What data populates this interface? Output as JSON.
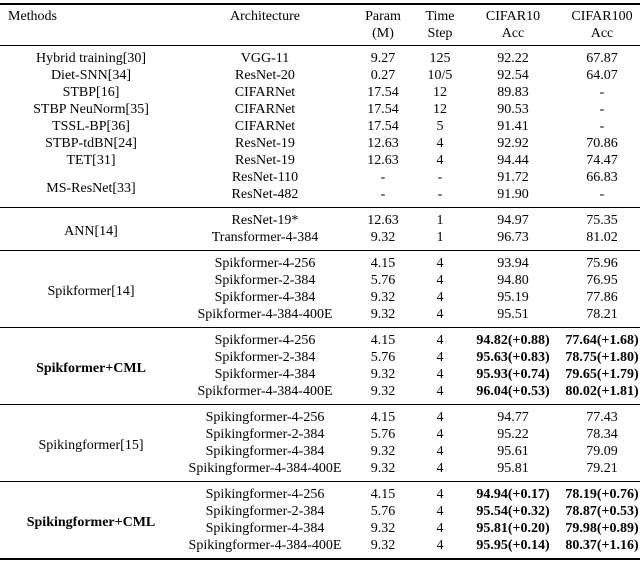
{
  "table": {
    "columns": [
      {
        "line1": "Methods",
        "line2": ""
      },
      {
        "line1": "Architecture",
        "line2": ""
      },
      {
        "line1": "Param",
        "line2": "(M)"
      },
      {
        "line1": "Time",
        "line2": "Step"
      },
      {
        "line1": "CIFAR10",
        "line2": "Acc"
      },
      {
        "line1": "CIFAR100",
        "line2": "Acc"
      }
    ],
    "sections": [
      {
        "bold": false,
        "groups": [
          {
            "method": "Hybrid training[30]",
            "rows": [
              {
                "architecture": "VGG-11",
                "param_m": "9.27",
                "time_step": "125",
                "cifar10_acc": "92.22",
                "cifar100_acc": "67.87"
              }
            ]
          },
          {
            "method": "Diet-SNN[34]",
            "rows": [
              {
                "architecture": "ResNet-20",
                "param_m": "0.27",
                "time_step": "10/5",
                "cifar10_acc": "92.54",
                "cifar100_acc": "64.07"
              }
            ]
          },
          {
            "method": "STBP[16]",
            "rows": [
              {
                "architecture": "CIFARNet",
                "param_m": "17.54",
                "time_step": "12",
                "cifar10_acc": "89.83",
                "cifar100_acc": "-"
              }
            ]
          },
          {
            "method": "STBP NeuNorm[35]",
            "rows": [
              {
                "architecture": "CIFARNet",
                "param_m": "17.54",
                "time_step": "12",
                "cifar10_acc": "90.53",
                "cifar100_acc": "-"
              }
            ]
          },
          {
            "method": "TSSL-BP[36]",
            "rows": [
              {
                "architecture": "CIFARNet",
                "param_m": "17.54",
                "time_step": "5",
                "cifar10_acc": "91.41",
                "cifar100_acc": "-"
              }
            ]
          },
          {
            "method": "STBP-tdBN[24]",
            "rows": [
              {
                "architecture": "ResNet-19",
                "param_m": "12.63",
                "time_step": "4",
                "cifar10_acc": "92.92",
                "cifar100_acc": "70.86"
              }
            ]
          },
          {
            "method": "TET[31]",
            "rows": [
              {
                "architecture": "ResNet-19",
                "param_m": "12.63",
                "time_step": "4",
                "cifar10_acc": "94.44",
                "cifar100_acc": "74.47"
              }
            ]
          },
          {
            "method": "MS-ResNet[33]",
            "rows": [
              {
                "architecture": "ResNet-110",
                "param_m": "-",
                "time_step": "-",
                "cifar10_acc": "91.72",
                "cifar100_acc": "66.83"
              },
              {
                "architecture": "ResNet-482",
                "param_m": "-",
                "time_step": "-",
                "cifar10_acc": "91.90",
                "cifar100_acc": "-"
              }
            ]
          }
        ]
      },
      {
        "bold": false,
        "groups": [
          {
            "method": "ANN[14]",
            "rows": [
              {
                "architecture": "ResNet-19*",
                "param_m": "12.63",
                "time_step": "1",
                "cifar10_acc": "94.97",
                "cifar100_acc": "75.35"
              },
              {
                "architecture": "Transformer-4-384",
                "param_m": "9.32",
                "time_step": "1",
                "cifar10_acc": "96.73",
                "cifar100_acc": "81.02"
              }
            ]
          }
        ]
      },
      {
        "bold": false,
        "groups": [
          {
            "method": "Spikformer[14]",
            "rows": [
              {
                "architecture": "Spikformer-4-256",
                "param_m": "4.15",
                "time_step": "4",
                "cifar10_acc": "93.94",
                "cifar100_acc": "75.96"
              },
              {
                "architecture": "Spikformer-2-384",
                "param_m": "5.76",
                "time_step": "4",
                "cifar10_acc": "94.80",
                "cifar100_acc": "76.95"
              },
              {
                "architecture": "Spikformer-4-384",
                "param_m": "9.32",
                "time_step": "4",
                "cifar10_acc": "95.19",
                "cifar100_acc": "77.86"
              },
              {
                "architecture": "Spikformer-4-384-400E",
                "param_m": "9.32",
                "time_step": "4",
                "cifar10_acc": "95.51",
                "cifar100_acc": "78.21"
              }
            ]
          }
        ]
      },
      {
        "bold": true,
        "groups": [
          {
            "method": "Spikformer+CML",
            "rows": [
              {
                "architecture": "Spikformer-4-256",
                "param_m": "4.15",
                "time_step": "4",
                "cifar10_acc": "94.82(+0.88)",
                "cifar100_acc": "77.64(+1.68)"
              },
              {
                "architecture": "Spikformer-2-384",
                "param_m": "5.76",
                "time_step": "4",
                "cifar10_acc": "95.63(+0.83)",
                "cifar100_acc": "78.75(+1.80)"
              },
              {
                "architecture": "Spikformer-4-384",
                "param_m": "9.32",
                "time_step": "4",
                "cifar10_acc": "95.93(+0.74)",
                "cifar100_acc": "79.65(+1.79)"
              },
              {
                "architecture": "Spikformer-4-384-400E",
                "param_m": "9.32",
                "time_step": "4",
                "cifar10_acc": "96.04(+0.53)",
                "cifar100_acc": "80.02(+1.81)"
              }
            ]
          }
        ]
      },
      {
        "bold": false,
        "groups": [
          {
            "method": "Spikingformer[15]",
            "rows": [
              {
                "architecture": "Spikingformer-4-256",
                "param_m": "4.15",
                "time_step": "4",
                "cifar10_acc": "94.77",
                "cifar100_acc": "77.43"
              },
              {
                "architecture": "Spikingformer-2-384",
                "param_m": "5.76",
                "time_step": "4",
                "cifar10_acc": "95.22",
                "cifar100_acc": "78.34"
              },
              {
                "architecture": "Spikingformer-4-384",
                "param_m": "9.32",
                "time_step": "4",
                "cifar10_acc": "95.61",
                "cifar100_acc": "79.09"
              },
              {
                "architecture": "Spikingformer-4-384-400E",
                "param_m": "9.32",
                "time_step": "4",
                "cifar10_acc": "95.81",
                "cifar100_acc": "79.21"
              }
            ]
          }
        ]
      },
      {
        "bold": true,
        "groups": [
          {
            "method": "Spikingformer+CML",
            "rows": [
              {
                "architecture": "Spikingformer-4-256",
                "param_m": "4.15",
                "time_step": "4",
                "cifar10_acc": "94.94(+0.17)",
                "cifar100_acc": "78.19(+0.76)"
              },
              {
                "architecture": "Spikingformer-2-384",
                "param_m": "5.76",
                "time_step": "4",
                "cifar10_acc": "95.54(+0.32)",
                "cifar100_acc": "78.87(+0.53)"
              },
              {
                "architecture": "Spikingformer-4-384",
                "param_m": "9.32",
                "time_step": "4",
                "cifar10_acc": "95.81(+0.20)",
                "cifar100_acc": "79.98(+0.89)"
              },
              {
                "architecture": "Spikingformer-4-384-400E",
                "param_m": "9.32",
                "time_step": "4",
                "cifar10_acc": "95.95(+0.14)",
                "cifar100_acc": "80.37(+1.16)"
              }
            ]
          }
        ]
      }
    ]
  }
}
